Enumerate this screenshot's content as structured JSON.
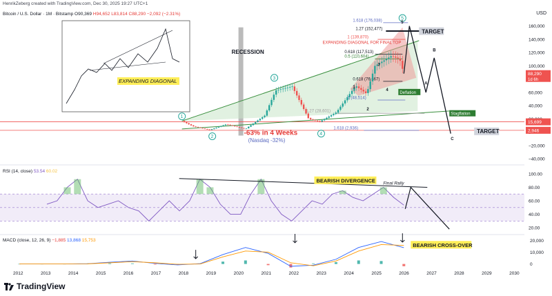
{
  "header": {
    "author_line": "HenrikZeberg created with TradingView.com, Dec 30, 2025 19:27 UTC+1",
    "symbol": "Bitcoin / U.S. Dollar · 1M · Bitstamp",
    "open": "O90,369",
    "high": "H94,652",
    "low": "L83,814",
    "close": "C88,290",
    "change": "−2,092 (−2.31%)",
    "currency": "USD"
  },
  "rsi_label": {
    "name": "RSI (14, close)",
    "rsi": "53.54",
    "ma": "60.02"
  },
  "macd_label": {
    "name": "MACD (close, 12, 26, 9)",
    "hist": "−1,885",
    "macd": "13,868",
    "signal": "15,753"
  },
  "brand": "TradingView",
  "colors": {
    "up": "#26a69a",
    "down": "#ef5350",
    "green_line": "#388e3c",
    "red_zone": "#ef9a9a",
    "rsi": "#7e57c2",
    "rsi_ma": "#f6c343",
    "macd": "#2962ff",
    "signal": "#ff9800",
    "yellow_label": "#ffee58",
    "green_label": "#2e7d32"
  },
  "chart_data": [
    {
      "type": "line",
      "subtype": "candlestick",
      "title": "",
      "x_axis": {
        "ticks": [
          "2012",
          "2013",
          "2014",
          "2015",
          "2016",
          "2017",
          "2018",
          "2019",
          "2020",
          "2021",
          "2022",
          "2023",
          "2024",
          "2025",
          "2026",
          "2027",
          "2028",
          "2029",
          "2030"
        ]
      },
      "y_axis": {
        "ticks": [
          "160,000",
          "140,000",
          "120,000",
          "100,000",
          "80,000",
          "60,000",
          "40,000",
          "20,000",
          "0",
          "−20,000",
          "−40,000"
        ],
        "range": [
          -45000,
          168000
        ]
      },
      "price_tags": [
        {
          "label": "88,290",
          "sub": "1d 6h",
          "value": 88290,
          "color": "#ef5350"
        },
        {
          "label": "15,699",
          "value": 15699,
          "color": "#ef5350"
        },
        {
          "label": "2,946",
          "value": 2946,
          "color": "#ef5350"
        }
      ],
      "series": [
        {
          "name": "BTCUSD",
          "x": [
            2017.9,
            2018.3,
            2018.9,
            2019.5,
            2020.2,
            2020.9,
            2021.3,
            2021.9,
            2022.5,
            2022.9,
            2023.5,
            2024.2,
            2024.6,
            2024.9,
            2025.5,
            2025.8,
            2025.95
          ],
          "y": [
            17000,
            9000,
            3500,
            12000,
            5000,
            25000,
            63000,
            69000,
            20000,
            16000,
            30000,
            70000,
            58000,
            100000,
            115000,
            110000,
            88290
          ]
        }
      ],
      "fib_levels": [
        {
          "label": "1.618 (176,038)",
          "value": 176038
        },
        {
          "label": "1.27 (152,477)",
          "value": 152477
        },
        {
          "label": "1 (139,870)",
          "value": 139870
        },
        {
          "label": "0.618 (117,513)",
          "value": 117513
        },
        {
          "label": "0.5 (110,604)",
          "value": 110604
        },
        {
          "label": "0.618 (76,667)",
          "value": 76667
        },
        {
          "label": "1 (48,514)",
          "value": 48514
        },
        {
          "label": "1.27 (28,601)",
          "value": 28601
        },
        {
          "label": "1.618 (2,936)",
          "value": 2936
        }
      ],
      "annotations": [
        "RECESSION",
        "EXPANDING DIAGONAL FOR FINAL TOP",
        "TARGET",
        "TARGET",
        "-63% in 4 Weeks",
        "(Nasdaq -32%)",
        "Deflation",
        "Stagflation",
        "1",
        "2",
        "3",
        "4",
        "5",
        "A",
        "B",
        "C",
        "1",
        "2",
        "3",
        "4",
        "5"
      ],
      "inset_label": "EXPANDING DIAGONAL"
    },
    {
      "type": "line",
      "title": "RSI (14, close)",
      "y_axis": {
        "ticks": [
          "100.00",
          "80.00",
          "60.00",
          "40.00",
          "20.00"
        ],
        "range": [
          15,
          105
        ]
      },
      "series": [
        {
          "name": "RSI",
          "values": [
            55,
            60,
            80,
            92,
            60,
            50,
            55,
            60,
            50,
            45,
            30,
            45,
            60,
            45,
            60,
            92,
            80,
            55,
            40,
            40,
            70,
            92,
            60,
            40,
            30,
            45,
            60,
            55,
            70,
            75,
            65,
            60,
            70,
            80,
            65,
            53.54
          ]
        }
      ],
      "annotations": [
        "BEARISH DIVERGENCE",
        "Final Rally"
      ]
    },
    {
      "type": "bar",
      "title": "MACD (close, 12, 26, 9)",
      "y_axis": {
        "ticks": [
          "20,000",
          "10,000",
          "0"
        ],
        "range": [
          -2000,
          22000
        ]
      },
      "series": [
        {
          "name": "MACD",
          "values": [
            0,
            0,
            0,
            200,
            1500,
            2500,
            500,
            -800,
            300,
            8000,
            14000,
            9000,
            -2000,
            -1000,
            4000,
            14000,
            19000,
            13868
          ]
        },
        {
          "name": "Signal",
          "values": [
            0,
            0,
            0,
            100,
            1000,
            2000,
            1000,
            -300,
            0,
            6000,
            11000,
            10000,
            1000,
            -1500,
            2500,
            11000,
            16500,
            15753
          ]
        }
      ],
      "annotations": [
        "BEARISH CROSS-OVER"
      ]
    }
  ]
}
